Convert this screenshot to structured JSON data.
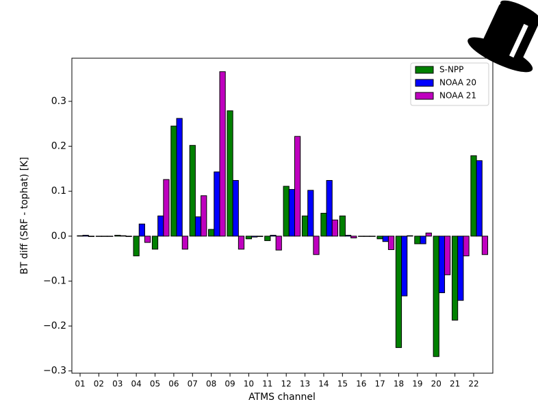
{
  "chart_data": {
    "type": "bar",
    "xlabel": "ATMS channel",
    "ylabel": "BT diff (SRF - tophat) [K]",
    "categories": [
      "01",
      "02",
      "03",
      "04",
      "05",
      "06",
      "07",
      "08",
      "09",
      "10",
      "11",
      "12",
      "13",
      "14",
      "15",
      "16",
      "17",
      "18",
      "19",
      "20",
      "21",
      "22"
    ],
    "series": [
      {
        "name": "S-NPP",
        "color": "#008000",
        "values": [
          0.001,
          0,
          0.002,
          -0.044,
          -0.029,
          0.245,
          0.202,
          0.015,
          0.279,
          -0.006,
          -0.01,
          0.111,
          0.045,
          0.051,
          0.045,
          0,
          -0.006,
          -0.248,
          -0.017,
          -0.268,
          -0.187,
          0.179
        ]
      },
      {
        "name": "NOAA 20",
        "color": "#0000ff",
        "values": [
          0.002,
          0,
          0.001,
          0.027,
          0.045,
          0.262,
          0.043,
          0.143,
          0.124,
          -0.002,
          0.002,
          0.104,
          0.102,
          0.124,
          0.002,
          0,
          -0.012,
          -0.133,
          -0.017,
          -0.126,
          -0.143,
          0.168
        ]
      },
      {
        "name": "NOAA 21",
        "color": "#bf00bf",
        "values": [
          -0.001,
          0,
          -0.001,
          -0.014,
          0.126,
          -0.029,
          0.09,
          0.366,
          -0.029,
          -0.001,
          -0.031,
          0.222,
          -0.041,
          0.036,
          -0.004,
          0,
          -0.03,
          0.001,
          0.007,
          -0.086,
          -0.044,
          -0.041
        ]
      }
    ],
    "ylim": [
      -0.305,
      0.396
    ],
    "yticks": [
      {
        "value": -0.3,
        "label": "−0.3"
      },
      {
        "value": -0.2,
        "label": "−0.2"
      },
      {
        "value": -0.1,
        "label": "−0.1"
      },
      {
        "value": 0,
        "label": "0.0"
      },
      0.1,
      0.2,
      0.3
    ],
    "legend": "upper right"
  }
}
